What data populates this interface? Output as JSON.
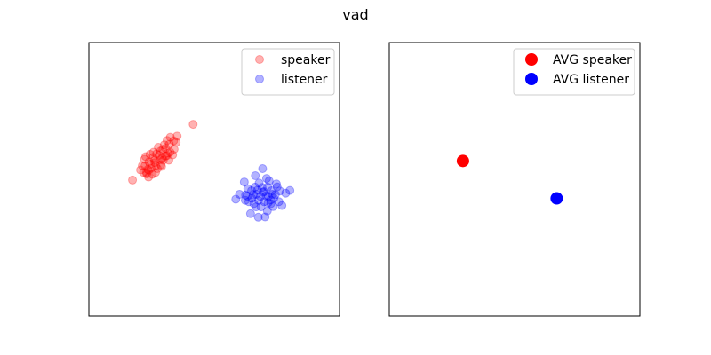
{
  "figure": {
    "suptitle": "vad"
  },
  "chart_data": [
    {
      "type": "scatter",
      "title": "",
      "xlabel": "",
      "ylabel": "",
      "xlim": [
        0,
        10
      ],
      "ylim": [
        0,
        10
      ],
      "ticks_visible": false,
      "grid": false,
      "legend": "top-right",
      "series": [
        {
          "name": "speaker",
          "color": "#ff0000",
          "alpha": 0.3,
          "marker": "circle",
          "points": [
            [
              1.74,
              4.97
            ],
            [
              4.16,
              7.01
            ],
            [
              2.45,
              5.55
            ],
            [
              2.3,
              5.25
            ],
            [
              2.56,
              5.8
            ],
            [
              2.24,
              5.5
            ],
            [
              2.7,
              5.93
            ],
            [
              2.85,
              6.03
            ],
            [
              3.01,
              6.26
            ],
            [
              3.12,
              6.42
            ],
            [
              3.25,
              6.54
            ],
            [
              3.38,
              6.41
            ],
            [
              3.4,
              6.1
            ],
            [
              3.15,
              5.96
            ],
            [
              2.92,
              5.77
            ],
            [
              2.63,
              5.61
            ],
            [
              2.48,
              5.4
            ],
            [
              2.31,
              5.19
            ],
            [
              2.18,
              5.25
            ],
            [
              2.53,
              5.18
            ],
            [
              2.73,
              5.39
            ],
            [
              2.87,
              5.53
            ],
            [
              2.97,
              5.7
            ],
            [
              3.1,
              5.86
            ],
            [
              3.24,
              5.99
            ],
            [
              3.06,
              6.13
            ],
            [
              2.8,
              5.88
            ],
            [
              2.62,
              5.69
            ],
            [
              2.4,
              5.64
            ],
            [
              2.22,
              5.73
            ],
            [
              2.13,
              5.5
            ],
            [
              2.35,
              5.36
            ],
            [
              2.66,
              5.25
            ],
            [
              2.9,
              5.47
            ],
            [
              3.19,
              5.7
            ],
            [
              3.34,
              5.89
            ],
            [
              3.48,
              6.35
            ],
            [
              3.52,
              6.58
            ],
            [
              3.21,
              6.28
            ],
            [
              2.95,
              6.09
            ],
            [
              2.77,
              6.17
            ],
            [
              2.58,
              5.99
            ],
            [
              2.44,
              5.91
            ],
            [
              2.27,
              5.83
            ],
            [
              2.39,
              5.33
            ],
            [
              2.67,
              5.51
            ],
            [
              2.84,
              5.72
            ],
            [
              3.05,
              5.85
            ],
            [
              2.38,
              5.08
            ],
            [
              2.06,
              5.34
            ]
          ]
        },
        {
          "name": "listener",
          "color": "#0000ff",
          "alpha": 0.3,
          "marker": "circle",
          "points": [
            [
              6.93,
              5.39
            ],
            [
              6.2,
              4.9
            ],
            [
              6.01,
              4.45
            ],
            [
              6.5,
              4.3
            ],
            [
              6.63,
              4.71
            ],
            [
              6.79,
              4.86
            ],
            [
              6.95,
              4.52
            ],
            [
              7.13,
              4.71
            ],
            [
              7.29,
              4.58
            ],
            [
              7.44,
              4.44
            ],
            [
              7.62,
              4.57
            ],
            [
              7.85,
              4.49
            ],
            [
              8.02,
              4.59
            ],
            [
              7.26,
              4.11
            ],
            [
              6.84,
              4.37
            ],
            [
              6.49,
              4.58
            ],
            [
              6.38,
              4.18
            ],
            [
              6.67,
              3.99
            ],
            [
              6.87,
              3.99
            ],
            [
              7.07,
              4.39
            ],
            [
              7.25,
              4.24
            ],
            [
              7.35,
              4.0
            ],
            [
              7.12,
              3.84
            ],
            [
              6.77,
              4.23
            ],
            [
              6.58,
              4.11
            ],
            [
              6.25,
              4.42
            ],
            [
              6.34,
              4.65
            ],
            [
              6.68,
              4.45
            ],
            [
              6.99,
              4.18
            ],
            [
              7.16,
              4.38
            ],
            [
              7.38,
              4.31
            ],
            [
              7.51,
              4.72
            ],
            [
              7.58,
              4.18
            ],
            [
              7.09,
              5.03
            ],
            [
              6.64,
              5.13
            ],
            [
              6.24,
              4.23
            ],
            [
              5.86,
              4.27
            ],
            [
              7.03,
              3.62
            ],
            [
              6.45,
              3.74
            ],
            [
              6.76,
              3.61
            ],
            [
              7.7,
              4.04
            ],
            [
              7.19,
              4.94
            ],
            [
              6.91,
              4.7
            ],
            [
              7.32,
              4.45
            ],
            [
              7.48,
              4.83
            ],
            [
              6.56,
              4.43
            ],
            [
              6.32,
              4.38
            ],
            [
              7.15,
              4.14
            ],
            [
              6.98,
              4.55
            ],
            [
              6.73,
              4.6
            ]
          ]
        }
      ]
    },
    {
      "type": "scatter",
      "title": "",
      "xlabel": "",
      "ylabel": "",
      "xlim": [
        0,
        10
      ],
      "ylim": [
        0,
        10
      ],
      "ticks_visible": false,
      "grid": false,
      "legend": "top-right",
      "series": [
        {
          "name": "AVG speaker",
          "color": "#ff0000",
          "alpha": 1.0,
          "marker": "circle",
          "points": [
            [
              2.94,
              5.67
            ]
          ]
        },
        {
          "name": "AVG listener",
          "color": "#0000ff",
          "alpha": 1.0,
          "marker": "circle",
          "points": [
            [
              6.68,
              4.3
            ]
          ]
        }
      ]
    }
  ]
}
